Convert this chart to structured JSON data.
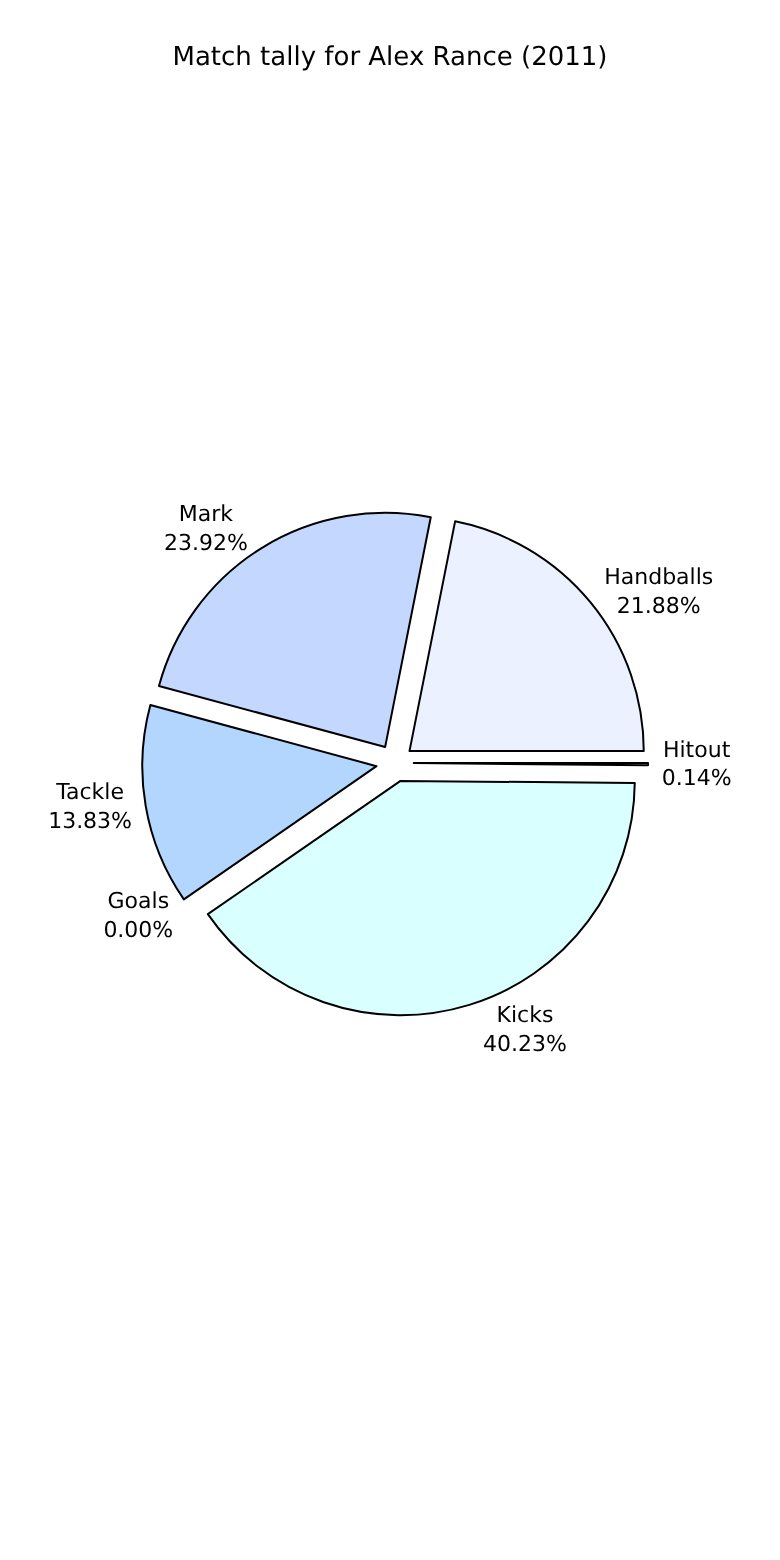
{
  "chart_data": {
    "type": "pie",
    "title": "Match tally for Alex Rance (2011)",
    "categories": [
      "Hitout",
      "Handballs",
      "Mark",
      "Tackle",
      "Goals",
      "Kicks"
    ],
    "values": [
      0.14,
      21.88,
      23.92,
      13.83,
      0.0,
      40.23
    ],
    "value_labels": [
      "0.14%",
      "21.88%",
      "23.92%",
      "13.83%",
      "0.00%",
      "40.23%"
    ],
    "colors": [
      "#ffffff",
      "#ebf1ff",
      "#c3d7ff",
      "#b3d6ff",
      "#ffffff",
      "#d9ffff"
    ],
    "legend": false
  }
}
